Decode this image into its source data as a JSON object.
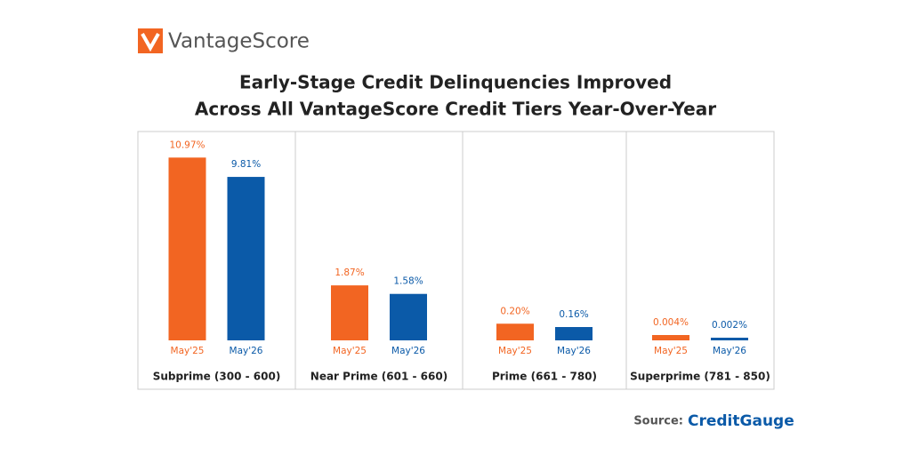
{
  "logo": "VantageScore",
  "title_lines": [
    "Early-Stage Credit Delinquencies Improved",
    "Across All VantageScore Credit Tiers Year-Over-Year"
  ],
  "source": {
    "label": "Source:",
    "brand": "CreditGauge"
  },
  "chart_data": [
    {
      "type": "bar",
      "title": "Subprime (300 - 600)",
      "categories": [
        "May'25",
        "May'26"
      ],
      "values": [
        10.97,
        9.81
      ],
      "value_labels": [
        "10.97%",
        "9.81%"
      ],
      "colors": [
        "#f26522",
        "#0b5aa8"
      ],
      "ylim": [
        0,
        12
      ]
    },
    {
      "type": "bar",
      "title": "Near Prime (601 - 660)",
      "categories": [
        "May'25",
        "May'26"
      ],
      "values": [
        1.87,
        1.58
      ],
      "value_labels": [
        "1.87%",
        "1.58%"
      ],
      "colors": [
        "#f26522",
        "#0b5aa8"
      ],
      "ylim": [
        0,
        6.8
      ]
    },
    {
      "type": "bar",
      "title": "Prime (661 - 780)",
      "categories": [
        "May'25",
        "May'26"
      ],
      "values": [
        0.2,
        0.16
      ],
      "value_labels": [
        "0.20%",
        "0.16%"
      ],
      "colors": [
        "#f26522",
        "#0b5aa8"
      ],
      "ylim": [
        0,
        2.4
      ]
    },
    {
      "type": "bar",
      "title": "Superprime (781 - 850)",
      "categories": [
        "May'25",
        "May'26"
      ],
      "values": [
        0.004,
        0.002
      ],
      "value_labels": [
        "0.004%",
        "0.002%"
      ],
      "colors": [
        "#f26522",
        "#0b5aa8"
      ],
      "ylim": [
        0,
        0.15
      ]
    }
  ]
}
